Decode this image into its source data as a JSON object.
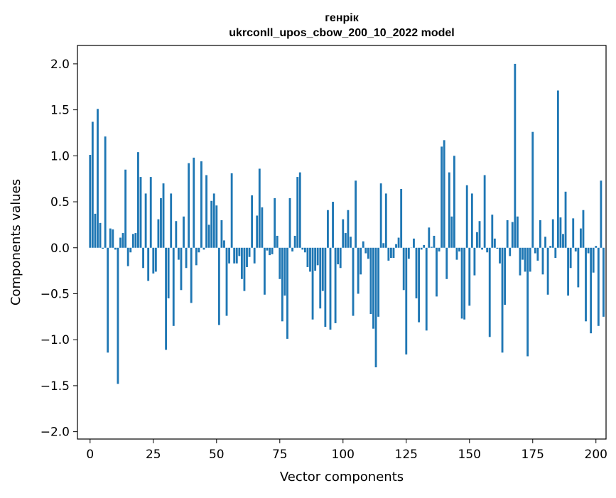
{
  "chart_data": {
    "type": "bar",
    "title": "генрік",
    "subtitle": "ukrconll_upos_cbow_200_10_2022 model",
    "xlabel": "Vector components",
    "ylabel": "Components values",
    "xlim": [
      -5,
      204
    ],
    "ylim": [
      -2.08,
      2.2
    ],
    "xticks": [
      0,
      25,
      50,
      75,
      100,
      125,
      150,
      175,
      200
    ],
    "xtick_labels": [
      "0",
      "25",
      "50",
      "75",
      "100",
      "125",
      "150",
      "175",
      "200"
    ],
    "yticks": [
      2.0,
      1.5,
      1.0,
      0.5,
      0.0,
      -0.5,
      -1.0,
      -1.5,
      -2.0
    ],
    "ytick_labels": [
      "2.0",
      "1.5",
      "1.0",
      "0.5",
      "0.0",
      "−0.5",
      "−1.0",
      "−1.5",
      "−2.0"
    ],
    "grid": false,
    "bar_color": "#1f77b4",
    "values": [
      1.01,
      1.37,
      0.37,
      1.51,
      0.27,
      -0.01,
      1.21,
      -1.14,
      0.21,
      0.2,
      -0.02,
      -1.48,
      0.11,
      0.16,
      0.85,
      -0.2,
      -0.05,
      0.15,
      0.16,
      1.04,
      0.77,
      -0.22,
      0.59,
      -0.36,
      0.77,
      -0.28,
      -0.26,
      0.31,
      0.54,
      0.7,
      -1.11,
      -0.55,
      0.59,
      -0.85,
      0.29,
      -0.13,
      -0.46,
      0.34,
      -0.22,
      0.92,
      -0.6,
      0.98,
      -0.19,
      -0.05,
      0.94,
      -0.02,
      0.79,
      0.25,
      0.51,
      0.59,
      0.46,
      -0.84,
      0.3,
      0.08,
      -0.74,
      -0.17,
      0.81,
      -0.17,
      -0.17,
      -0.09,
      -0.34,
      -0.47,
      -0.21,
      -0.1,
      0.57,
      -0.17,
      0.35,
      0.86,
      0.44,
      -0.51,
      -0.03,
      -0.08,
      -0.07,
      0.54,
      0.13,
      -0.34,
      -0.8,
      -0.52,
      -0.99,
      0.54,
      -0.04,
      0.13,
      0.77,
      0.82,
      -0.02,
      -0.05,
      -0.21,
      -0.26,
      -0.78,
      -0.25,
      -0.19,
      -0.66,
      -0.47,
      -0.86,
      0.41,
      -0.89,
      0.5,
      -0.82,
      -0.18,
      -0.22,
      0.31,
      0.16,
      0.41,
      0.12,
      -0.74,
      0.73,
      -0.5,
      -0.29,
      0.07,
      -0.06,
      -0.12,
      -0.72,
      -0.88,
      -1.3,
      -0.75,
      0.7,
      0.05,
      0.59,
      -0.14,
      -0.11,
      -0.11,
      0.04,
      0.11,
      0.64,
      -0.46,
      -1.16,
      -0.12,
      0.0,
      0.1,
      -0.55,
      -0.81,
      -0.02,
      0.03,
      -0.9,
      0.22,
      0.01,
      0.13,
      -0.53,
      -0.04,
      1.1,
      1.17,
      -0.34,
      0.82,
      0.34,
      1.0,
      -0.13,
      -0.04,
      -0.77,
      -0.78,
      0.68,
      -0.63,
      0.59,
      -0.3,
      0.17,
      0.29,
      -0.02,
      0.79,
      -0.05,
      -0.97,
      0.36,
      0.1,
      -0.01,
      -0.17,
      -1.14,
      -0.62,
      0.3,
      -0.09,
      0.28,
      2.0,
      0.34,
      -0.3,
      -0.13,
      -0.26,
      -1.18,
      -0.26,
      1.26,
      -0.06,
      -0.14,
      0.3,
      -0.29,
      0.12,
      -0.51,
      0.02,
      0.31,
      -0.11,
      1.71,
      0.33,
      0.15,
      0.61,
      -0.52,
      -0.22,
      0.32,
      -0.04,
      -0.43,
      0.21,
      0.41,
      -0.8,
      -0.06,
      -0.93,
      -0.27,
      0.02,
      -0.85,
      0.73,
      -0.75
    ]
  }
}
